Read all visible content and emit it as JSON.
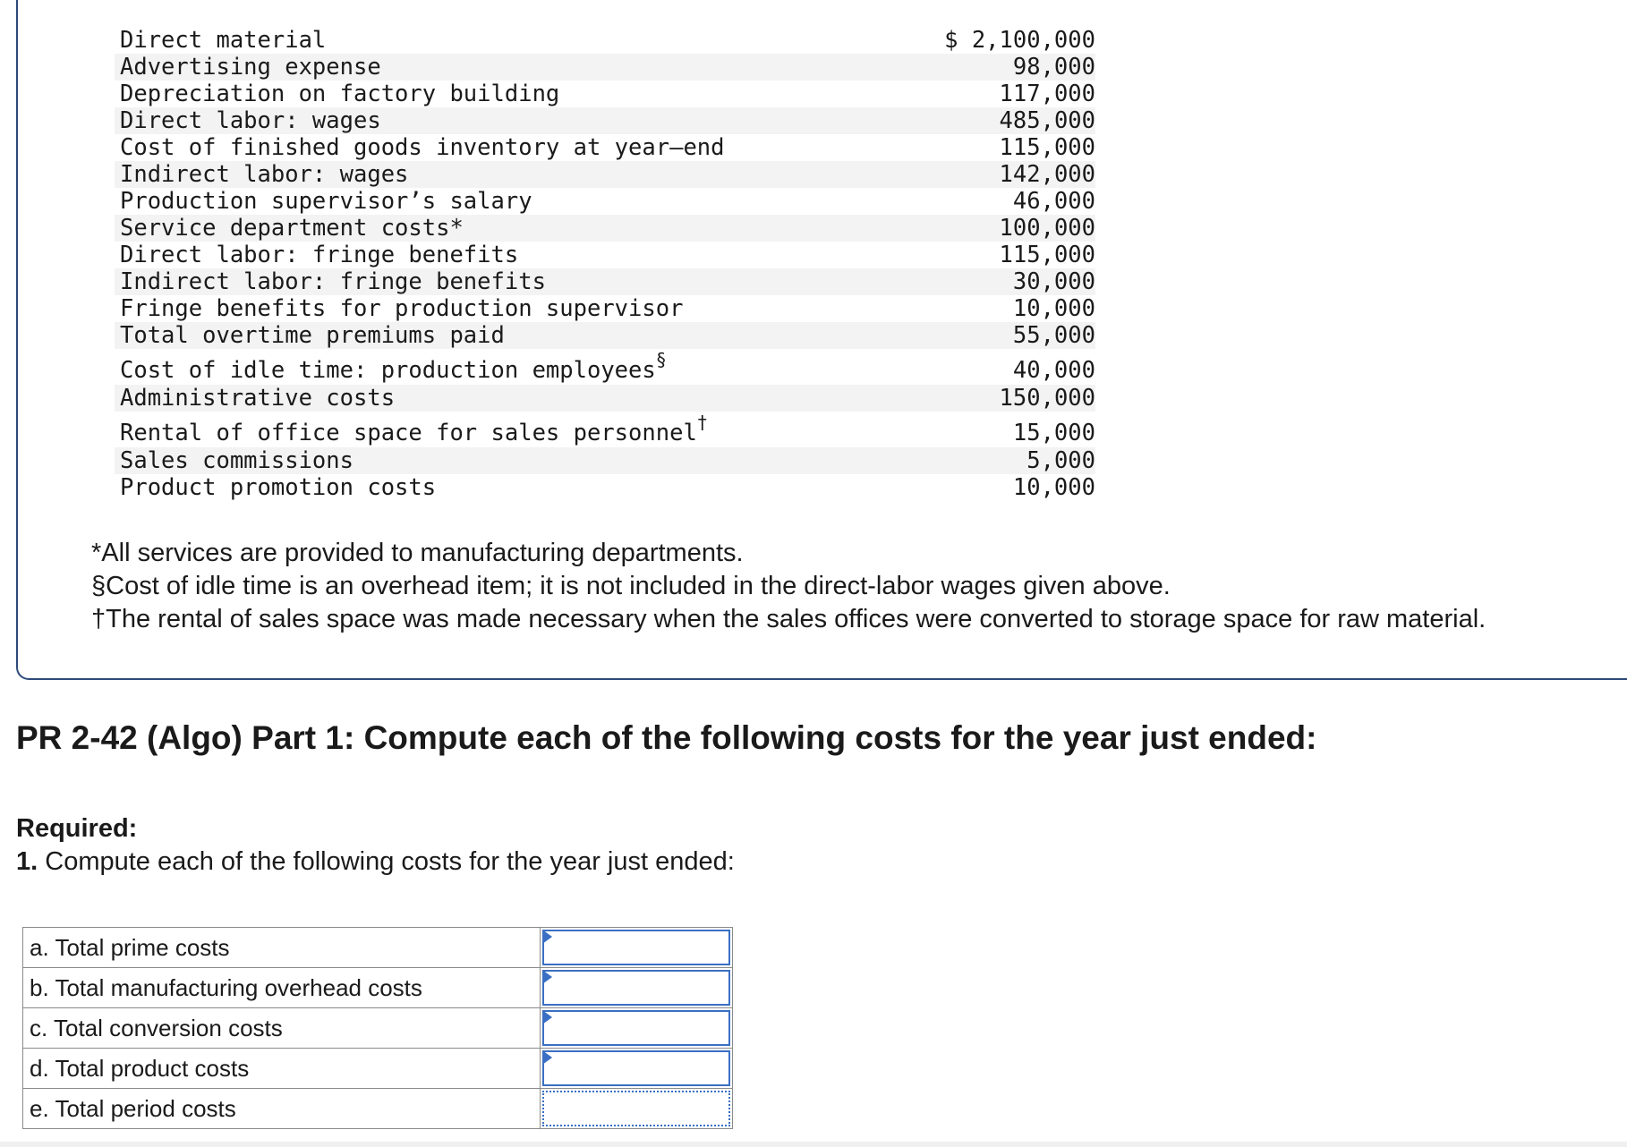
{
  "ledger": [
    {
      "label": "Direct material",
      "amount": "$ 2,100,000",
      "sup": ""
    },
    {
      "label": "Advertising expense",
      "amount": "98,000",
      "sup": ""
    },
    {
      "label": "Depreciation on factory building",
      "amount": "117,000",
      "sup": ""
    },
    {
      "label": "Direct labor: wages",
      "amount": "485,000",
      "sup": ""
    },
    {
      "label": "Cost of finished goods inventory at year–end",
      "amount": "115,000",
      "sup": ""
    },
    {
      "label": "Indirect labor: wages",
      "amount": "142,000",
      "sup": ""
    },
    {
      "label": "Production supervisor’s salary",
      "amount": "46,000",
      "sup": ""
    },
    {
      "label": "Service department costs*",
      "amount": "100,000",
      "sup": ""
    },
    {
      "label": "Direct labor: fringe benefits",
      "amount": "115,000",
      "sup": ""
    },
    {
      "label": "Indirect labor: fringe benefits",
      "amount": "30,000",
      "sup": ""
    },
    {
      "label": "Fringe benefits for production supervisor",
      "amount": "10,000",
      "sup": ""
    },
    {
      "label": "Total overtime premiums paid",
      "amount": "55,000",
      "sup": ""
    },
    {
      "label": "Cost of idle time: production employees",
      "amount": "40,000",
      "sup": "§"
    },
    {
      "label": "Administrative costs",
      "amount": "150,000",
      "sup": ""
    },
    {
      "label": "Rental of office space for sales personnel",
      "amount": "15,000",
      "sup": "†"
    },
    {
      "label": "Sales commissions",
      "amount": "5,000",
      "sup": ""
    },
    {
      "label": "Product promotion costs",
      "amount": "10,000",
      "sup": ""
    }
  ],
  "footnotes": {
    "star": "*All services are provided to manufacturing departments.",
    "section": "§Cost of idle time is an overhead item; it is not included in the direct-labor wages given above.",
    "dagger": "†The rental of sales space was made necessary when the sales offices were converted to storage space for raw material."
  },
  "heading": "PR 2-42 (Algo) Part 1: Compute each of the following costs for the year just ended:",
  "required": {
    "label": "Required:",
    "number": "1.",
    "text": " Compute each of the following costs for the year just ended:"
  },
  "answers": [
    {
      "label": "a. Total prime costs",
      "value": ""
    },
    {
      "label": "b. Total manufacturing overhead costs",
      "value": ""
    },
    {
      "label": "c. Total conversion costs",
      "value": ""
    },
    {
      "label": "d. Total product costs",
      "value": ""
    },
    {
      "label": "e. Total period costs",
      "value": ""
    }
  ],
  "colors": {
    "input_border": "#3a6fc4",
    "card_border": "#2e4a78",
    "row_stripe": "#f3f3f3"
  }
}
